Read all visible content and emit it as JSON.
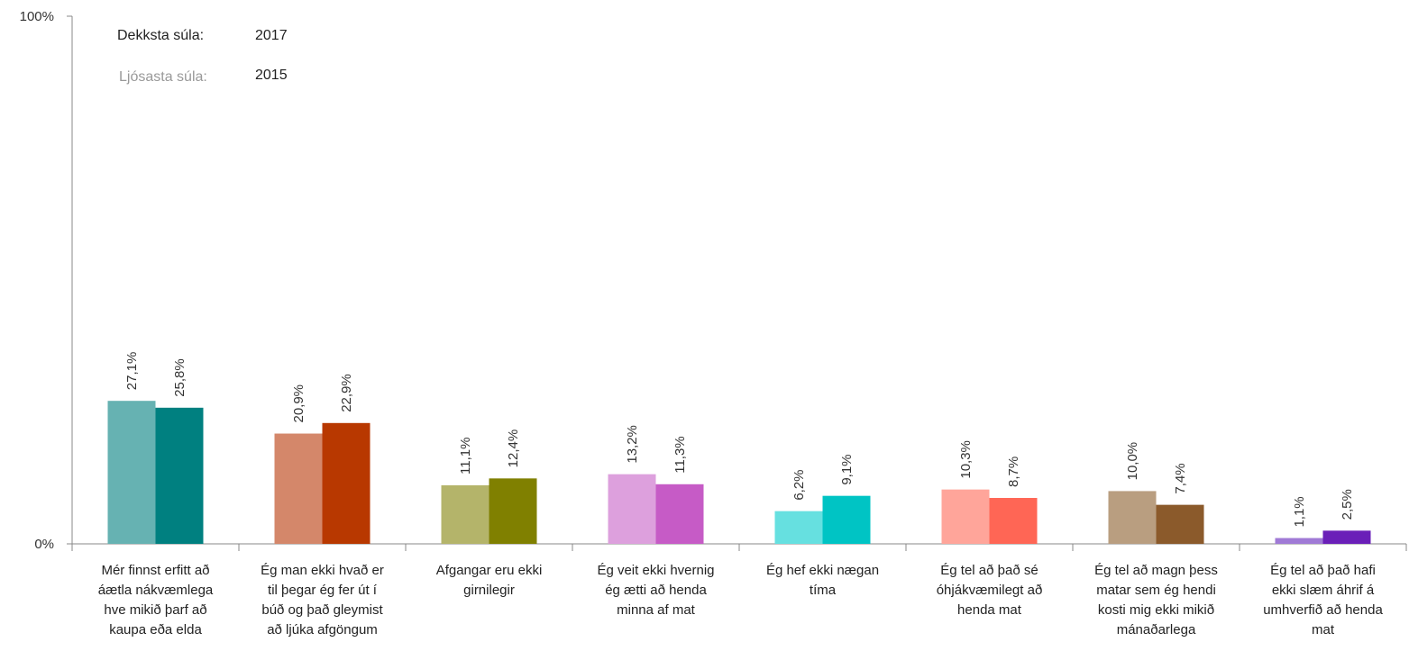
{
  "chart_data": {
    "type": "bar",
    "title": "",
    "xlabel": "",
    "ylabel": "",
    "ylim": [
      0,
      100
    ],
    "yticks": [
      "0%",
      "100%"
    ],
    "legend": {
      "position": "top-left",
      "dark": {
        "label": "Dekksta súla:",
        "value": "2017"
      },
      "light": {
        "label": "Ljósasta súla:",
        "value": "2015"
      }
    },
    "categories": [
      [
        "Mér finnst erfitt að",
        "áætla nákvæmlega",
        "hve mikið þarf að",
        "kaupa eða elda"
      ],
      [
        "Ég man ekki hvað er",
        "til þegar ég fer út í",
        "búð og það gleymist",
        "að ljúka afgöngum"
      ],
      [
        "Afgangar eru ekki",
        "girnilegir"
      ],
      [
        "Ég veit ekki hvernig",
        "ég ætti að henda",
        "minna af mat"
      ],
      [
        "Ég hef ekki nægan",
        "tíma"
      ],
      [
        "Ég tel að það sé",
        "óhjákvæmilegt að",
        "henda mat"
      ],
      [
        "Ég tel að magn þess",
        "matar sem ég hendi",
        "kosti mig ekki mikið",
        "mánaðarlega"
      ],
      [
        "Ég tel að það hafi",
        "ekki slæm áhrif á",
        "umhverfið að henda",
        "mat"
      ]
    ],
    "series": [
      {
        "values": [
          27.1,
          20.9,
          11.1,
          13.2,
          6.2,
          10.3,
          10.0,
          1.1
        ],
        "labels": [
          "27,1%",
          "20,9%",
          "11,1%",
          "13,2%",
          "6,2%",
          "10,3%",
          "10,0%",
          "1,1%"
        ],
        "colors": [
          "#66b2b2",
          "#d4876a",
          "#b4b46a",
          "#dda0dd",
          "#66e0e0",
          "#ffa59a",
          "#b99e80",
          "#a07ad6"
        ]
      },
      {
        "values": [
          25.8,
          22.9,
          12.4,
          11.3,
          9.1,
          8.7,
          7.4,
          2.5
        ],
        "labels": [
          "25,8%",
          "22,9%",
          "12,4%",
          "11,3%",
          "9,1%",
          "8,7%",
          "7,4%",
          "2,5%"
        ],
        "colors": [
          "#008080",
          "#b83800",
          "#808000",
          "#c65bc6",
          "#00c4c4",
          "#ff6655",
          "#8b5a2b",
          "#6a1fb8"
        ]
      }
    ]
  }
}
